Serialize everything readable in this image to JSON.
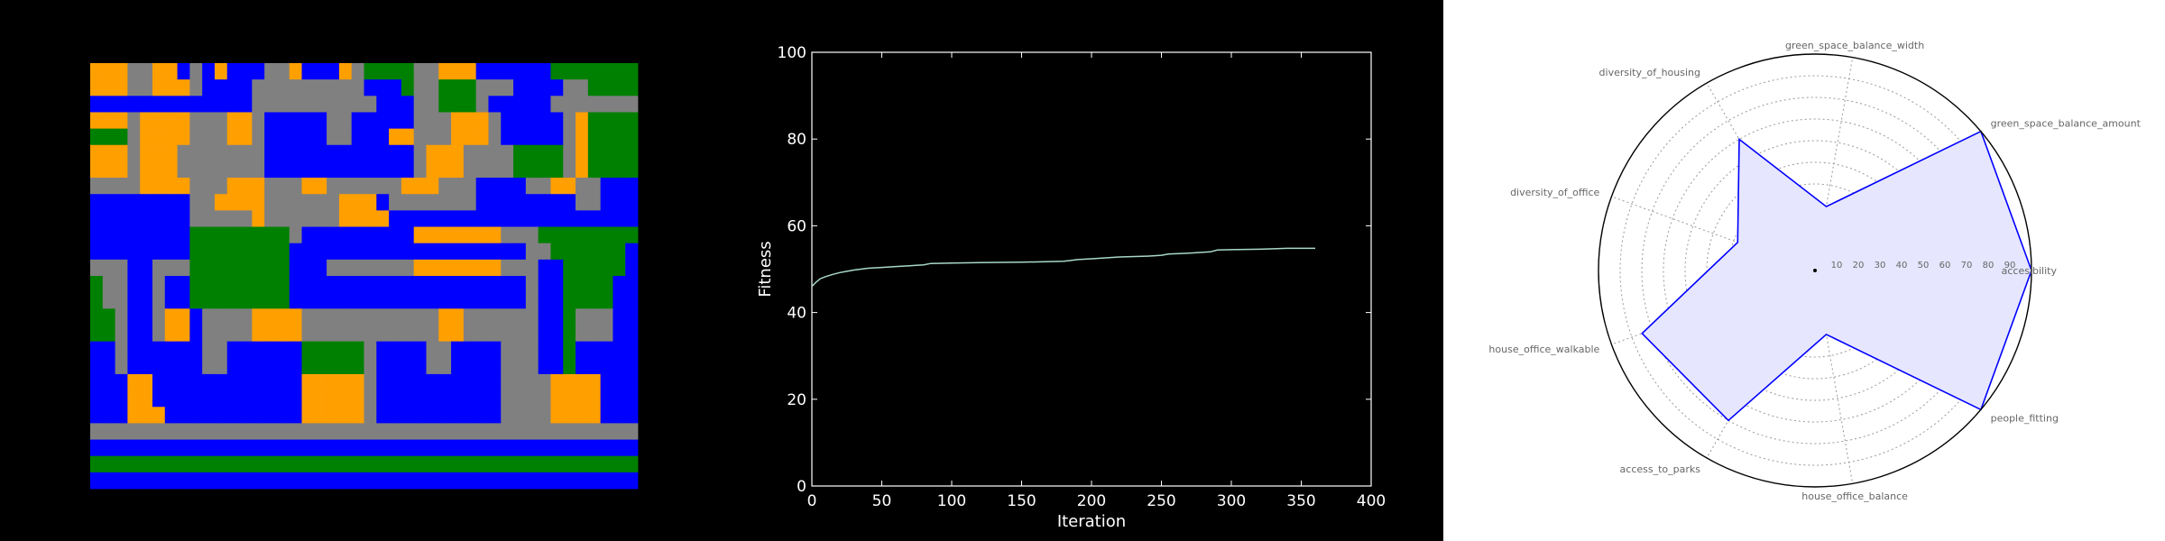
{
  "chart_data": [
    {
      "type": "heatmap",
      "description_level": "categorical grid of land uses",
      "legend": "none",
      "grid": false,
      "palette": {
        "0": "#808080",
        "1": "#ff9f00",
        "2": "#0000ff",
        "3": "#008000"
      },
      "rows": [
        "11100112021222001222103333001112222223333333",
        "11100111022220000000002223003330002222003333",
        "22222222222220000000000222003330222220000000",
        "11101111000110222220022222000111022222013333",
        "33301111000110222220022211000111022222013333",
        "11101110000000222222222222011100003333013333",
        "11101110000000222222222222011100003333013333",
        "00001111000111000110000001110002222001100222",
        "22222222001111000000111200000002222222200222",
        "22222222000001000000111122222222222222222222",
        "22222222333333330222222222111111100033333333",
        "22222222333333332222222222222222222003333332",
        "00022000333333332220000000111111100022333332",
        "30022022333333332222222222222222222022333322",
        "30022022333333332222222222222222222022333322",
        "33022011200001111000000000001100000022300022",
        "33022011200001111000000000001100000022300022",
        "22022222200222222333330222200222200022322222",
        "22022222200222222333330222200222200022322222",
        "22211222222222222111110222222222200001111222",
        "22211222222222222111110222222222200001111222",
        "22211122222222222111110222222222200001111222",
        "00000000000000000000000000000000000000000000",
        "22222222222222222222222222222222222222222222",
        "33333333333333333333333333333333333333333333",
        "22222222222222222222222222222222222222222222"
      ]
    },
    {
      "type": "line",
      "title": "",
      "xlabel": "Iteration",
      "ylabel": "Fitness",
      "xlim": [
        0,
        400
      ],
      "ylim": [
        0,
        100
      ],
      "xticks": [
        0,
        50,
        100,
        150,
        200,
        250,
        300,
        350,
        400
      ],
      "yticks": [
        0,
        20,
        40,
        60,
        80,
        100
      ],
      "grid": false,
      "series": [
        {
          "color": "#a8d8c8",
          "x": [
            0,
            3,
            6,
            10,
            15,
            20,
            25,
            30,
            35,
            40,
            50,
            60,
            70,
            80,
            85,
            100,
            120,
            150,
            180,
            185,
            190,
            200,
            220,
            240,
            250,
            255,
            270,
            285,
            290,
            300,
            320,
            340,
            360
          ],
          "y": [
            46,
            47,
            47.8,
            48.3,
            48.8,
            49.2,
            49.5,
            49.8,
            50,
            50.2,
            50.4,
            50.6,
            50.8,
            51,
            51.3,
            51.4,
            51.5,
            51.6,
            51.8,
            52,
            52.2,
            52.4,
            52.8,
            53,
            53.2,
            53.5,
            53.7,
            54,
            54.4,
            54.5,
            54.6,
            54.8,
            54.8
          ]
        }
      ]
    },
    {
      "type": "radar",
      "grid": true,
      "rlim": [
        0,
        100
      ],
      "rticks": [
        10,
        20,
        30,
        40,
        50,
        60,
        70,
        80,
        90
      ],
      "categories": [
        "accesibility",
        "green_space_balance_amount",
        "green_space_balance_width",
        "diversity_of_housing",
        "diversity_of_office",
        "house_office_walkable",
        "access_to_parks",
        "house_office_balance",
        "people_fitting"
      ],
      "line_color": "#0000ff",
      "fill_color": "#e6e6ff",
      "values": [
        100,
        100,
        30,
        70,
        38,
        85,
        80,
        30,
        100
      ]
    }
  ]
}
